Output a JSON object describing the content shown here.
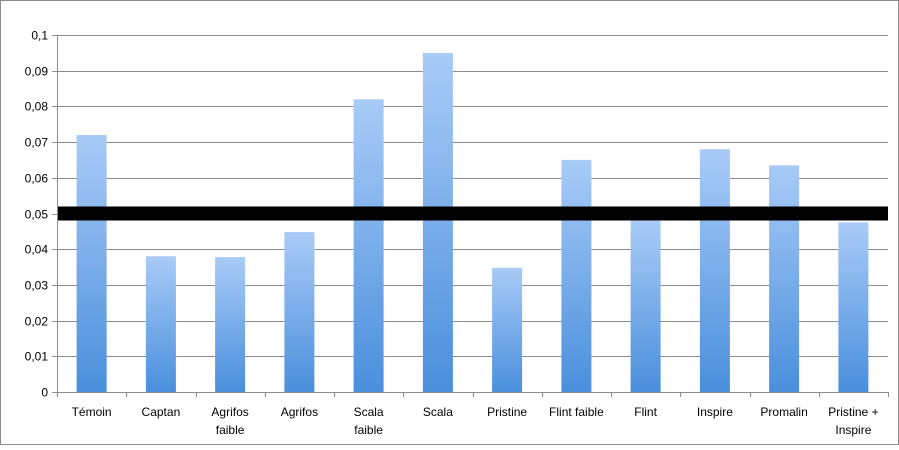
{
  "chart_data": {
    "type": "bar",
    "title": "",
    "xlabel": "",
    "ylabel": "",
    "categories": [
      [
        "Témoin"
      ],
      [
        "Captan"
      ],
      [
        "Agrifos",
        "faible"
      ],
      [
        "Agrifos"
      ],
      [
        "Scala",
        "faible"
      ],
      [
        "Scala"
      ],
      [
        "Pristine"
      ],
      [
        "Flint faible"
      ],
      [
        "Flint"
      ],
      [
        "Inspire"
      ],
      [
        "Promalin"
      ],
      [
        "Pristine +",
        "Inspire"
      ]
    ],
    "values": [
      0.072,
      0.038,
      0.0378,
      0.0448,
      0.082,
      0.095,
      0.0348,
      0.065,
      0.048,
      0.068,
      0.0635,
      0.0475
    ],
    "ylim": [
      0,
      0.1
    ],
    "yticks": [
      0,
      0.01,
      0.02,
      0.03,
      0.04,
      0.05,
      0.06,
      0.07,
      0.08,
      0.09,
      0.1
    ],
    "ytick_labels": [
      "0",
      "0,01",
      "0,02",
      "0,03",
      "0,04",
      "0,05",
      "0,06",
      "0,07",
      "0,08",
      "0,09",
      "0,1"
    ],
    "grid": true,
    "legend": "none",
    "threshold_line": {
      "value": 0.05,
      "color": "#000000"
    },
    "colors": {
      "bar_top": "#a9cbf7",
      "bar_bottom": "#4a8fdc",
      "grid": "#8c8c8c",
      "frame": "#8c8c8c"
    }
  }
}
